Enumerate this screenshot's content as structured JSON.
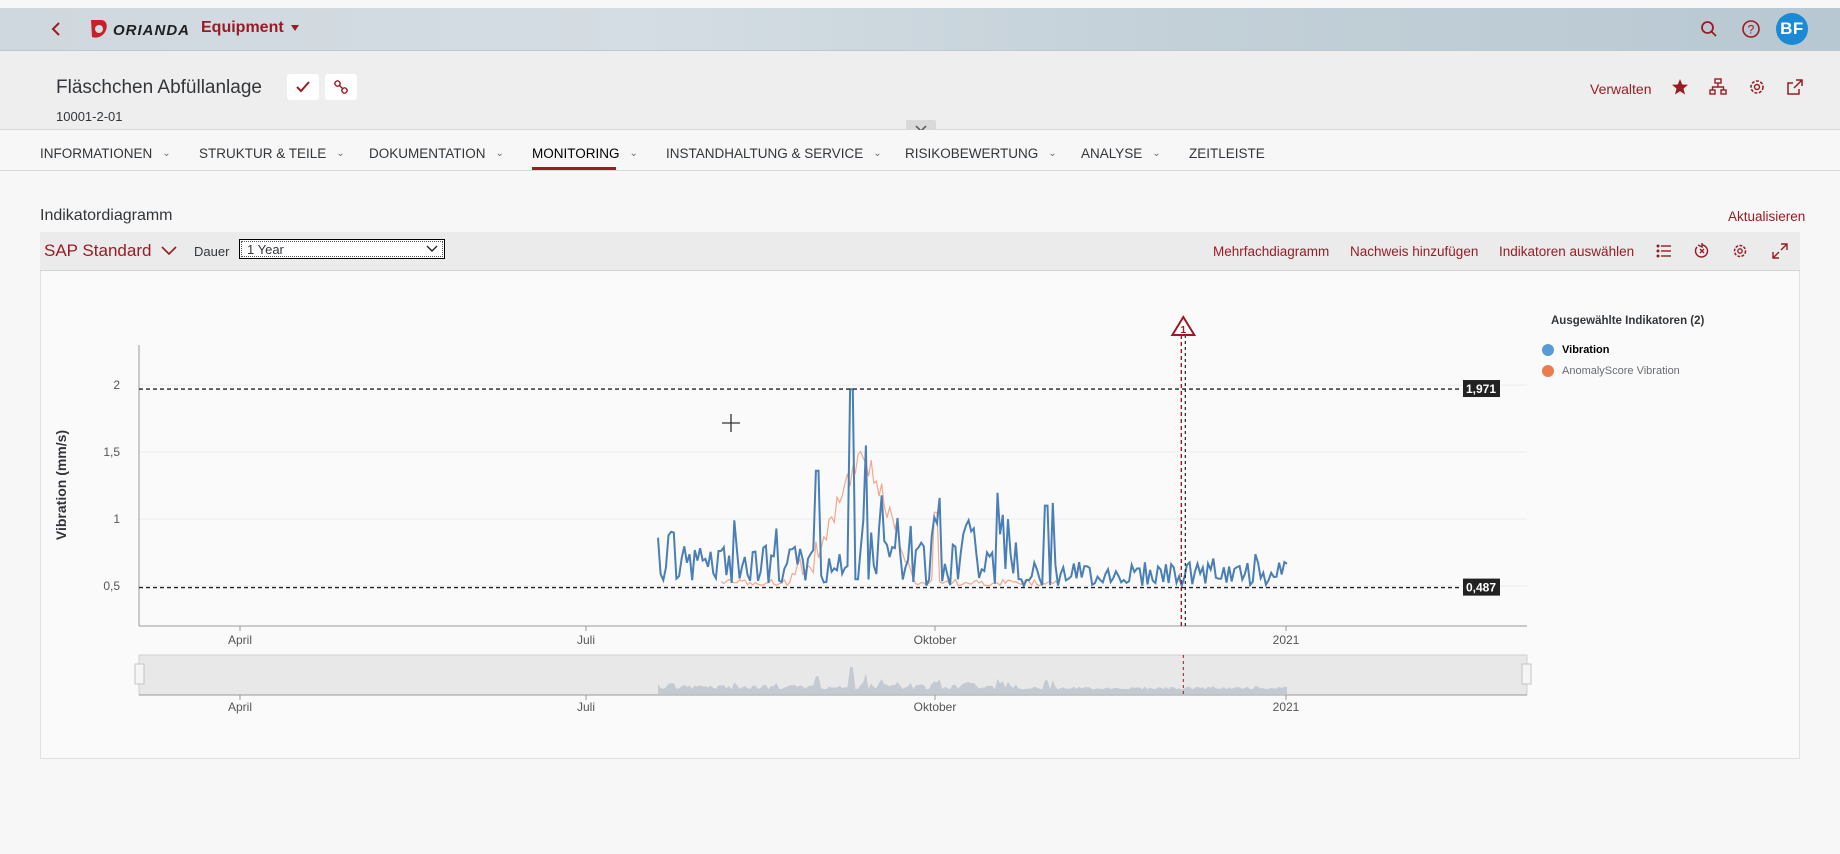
{
  "shell": {
    "logo": "ORIANDA",
    "app_title": "Equipment",
    "avatar_initials": "BF",
    "icons": [
      "back-icon",
      "search-icon",
      "help-icon"
    ]
  },
  "header": {
    "title": "Fläschchen Abfüllanlage",
    "subtitle": "10001-2-01",
    "verwalten": "Verwalten",
    "action_icons": [
      "checkmark-icon",
      "link-icon",
      "star-icon",
      "hierarchy-icon",
      "gear-icon",
      "share-icon"
    ]
  },
  "tabs": [
    {
      "label": "INFORMATIONEN",
      "chevron": true
    },
    {
      "label": "STRUKTUR & TEILE",
      "chevron": true
    },
    {
      "label": "DOKUMENTATION",
      "chevron": true
    },
    {
      "label": "MONITORING",
      "chevron": true,
      "active": true
    },
    {
      "label": "INSTANDHALTUNG & SERVICE",
      "chevron": true
    },
    {
      "label": "RISIKOBEWERTUNG",
      "chevron": true
    },
    {
      "label": "ANALYSE",
      "chevron": true
    },
    {
      "label": "ZEITLEISTE",
      "chevron": false
    }
  ],
  "section": {
    "title": "Indikatordiagramm",
    "refresh": "Aktualisieren"
  },
  "toolbar": {
    "variant": "SAP Standard",
    "duration_label": "Dauer",
    "duration_value": "1 Year",
    "links": [
      "Mehrfachdiagramm",
      "Nachweis hinzufügen",
      "Indikatoren auswählen"
    ],
    "icons": [
      "list-icon",
      "reset-zoom-icon",
      "gear-icon",
      "fullscreen-icon"
    ]
  },
  "legend": {
    "title": "Ausgewählte Indikatoren (2)",
    "items": [
      {
        "name": "Vibration",
        "color": "#5b9bd5"
      },
      {
        "name": "AnomalyScore Vibration",
        "color": "#e97d4e"
      }
    ]
  },
  "chart_data": {
    "type": "line",
    "ylabel": "Vibration (mm/s)",
    "y_ticks": [
      "0,5",
      "1",
      "1,5",
      "2"
    ],
    "ylim": [
      0.2,
      2.3
    ],
    "x_ticks": [
      "April",
      "Juli",
      "Oktober",
      "2021"
    ],
    "thresholds": [
      {
        "label": "1,971",
        "value": 1.971
      },
      {
        "label": "0,487",
        "value": 0.487
      }
    ],
    "event_marker": {
      "label": "1",
      "x_fraction_of_timeline": 0.84
    },
    "series": [
      {
        "name": "Vibration",
        "color": "#4a7fb5"
      },
      {
        "name": "AnomalyScore Vibration",
        "color": "#f0a98a"
      }
    ],
    "colors": {
      "accent": "#9a1b24",
      "threshold_label_bg": "#222222"
    }
  }
}
